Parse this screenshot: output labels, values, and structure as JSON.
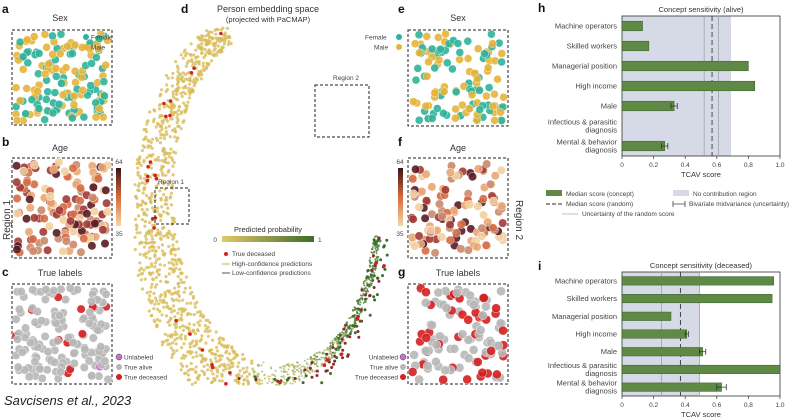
{
  "citation": "Savcisens et al., 2023",
  "colors": {
    "female": "#2fb39a",
    "male": "#e6b43c",
    "alive": "#b7b7b7",
    "deceased": "#d42020",
    "unlabeled": "#d070c8",
    "bar": "#5e8a45",
    "region": "#d6dae6",
    "prob_low": "#e3c868",
    "prob_high": "#3d6b2a"
  },
  "panels": {
    "a": {
      "letter": "a",
      "title": "Sex",
      "legend": [
        "Female",
        "Male"
      ]
    },
    "b": {
      "letter": "b",
      "title": "Age",
      "scale_max": "64",
      "scale_min": "35"
    },
    "c": {
      "letter": "c",
      "title": "True labels",
      "legend": [
        "Unlabeled",
        "True alive",
        "True deceased"
      ]
    },
    "d": {
      "letter": "d",
      "title": "Person embedding space",
      "subtitle": "(projected with PaCMAP)",
      "region1": "Region 1",
      "region2": "Region 2",
      "prob_title": "Predicted probability",
      "prob_min": "0",
      "prob_max": "1",
      "legend": [
        "True deceased",
        "High-confidence predictions",
        "Low-confidence predictions"
      ]
    },
    "e": {
      "letter": "e",
      "title": "Sex",
      "legend": [
        "Female",
        "Male"
      ]
    },
    "f": {
      "letter": "f",
      "title": "Age",
      "scale_max": "64",
      "scale_min": "35"
    },
    "g": {
      "letter": "g",
      "title": "True labels",
      "legend": [
        "Unlabeled",
        "True alive",
        "True deceased"
      ]
    },
    "side_left": "Region 1",
    "side_right": "Region 2"
  },
  "chart_data": [
    {
      "type": "bar",
      "panel": "h",
      "title": "Concept sensitivity (alive)",
      "categories": [
        "Machine operators",
        "Skilled workers",
        "Managerial position",
        "High income",
        "Male",
        "Infectious & parasitic diagnosis",
        "Mental & behavior diagnosis"
      ],
      "category_lines": [
        [
          "Machine operators"
        ],
        [
          "Skilled workers"
        ],
        [
          "Managerial position"
        ],
        [
          "High income"
        ],
        [
          "Male"
        ],
        [
          "Infectious & parasitic",
          "diagnosis"
        ],
        [
          "Mental & behavior",
          "diagnosis"
        ]
      ],
      "values": [
        0.13,
        0.17,
        0.8,
        0.84,
        0.33,
        0.0,
        0.27
      ],
      "errors": [
        0.0,
        0.0,
        0.0,
        0.0,
        0.02,
        0.0,
        0.02
      ],
      "xlabel": "TCAV score",
      "xlim": [
        0,
        1.0
      ],
      "xticks": [
        "0",
        "0.2",
        "0.4",
        "0.6",
        "0.8",
        "1.0"
      ],
      "random_median": 0.57,
      "random_uncertainty": [
        0.52,
        0.61
      ],
      "no_contribution_region": [
        0.0,
        0.69
      ]
    },
    {
      "type": "bar",
      "panel": "i",
      "title": "Concept sensitivity (deceased)",
      "categories": [
        "Machine operators",
        "Skilled workers",
        "Managerial position",
        "High income",
        "Male",
        "Infectious & parasitic diagnosis",
        "Mental & behavior diagnosis"
      ],
      "category_lines": [
        [
          "Machine operators"
        ],
        [
          "Skilled workers"
        ],
        [
          "Managerial position"
        ],
        [
          "High income"
        ],
        [
          "Male"
        ],
        [
          "Infectious & parasitic",
          "diagnosis"
        ],
        [
          "Mental & behavior",
          "diagnosis"
        ]
      ],
      "values": [
        0.96,
        0.95,
        0.31,
        0.41,
        0.51,
        1.0,
        0.63
      ],
      "errors": [
        0.0,
        0.0,
        0.0,
        0.01,
        0.02,
        0.0,
        0.03
      ],
      "xlabel": "TCAV score",
      "xlim": [
        0,
        1.0
      ],
      "xticks": [
        "0",
        "0.2",
        "0.4",
        "0.6",
        "0.8",
        "1.0"
      ],
      "random_median": 0.37,
      "random_uncertainty": [
        0.25,
        0.49
      ],
      "no_contribution_region": [
        0.0,
        0.49
      ]
    }
  ],
  "chart_legend": {
    "items": [
      "Median score (concept)",
      "Median score (random)",
      "Uncertainty of the random score",
      "No contribution region",
      "Bivariate midvariance (uncertainty)"
    ]
  }
}
